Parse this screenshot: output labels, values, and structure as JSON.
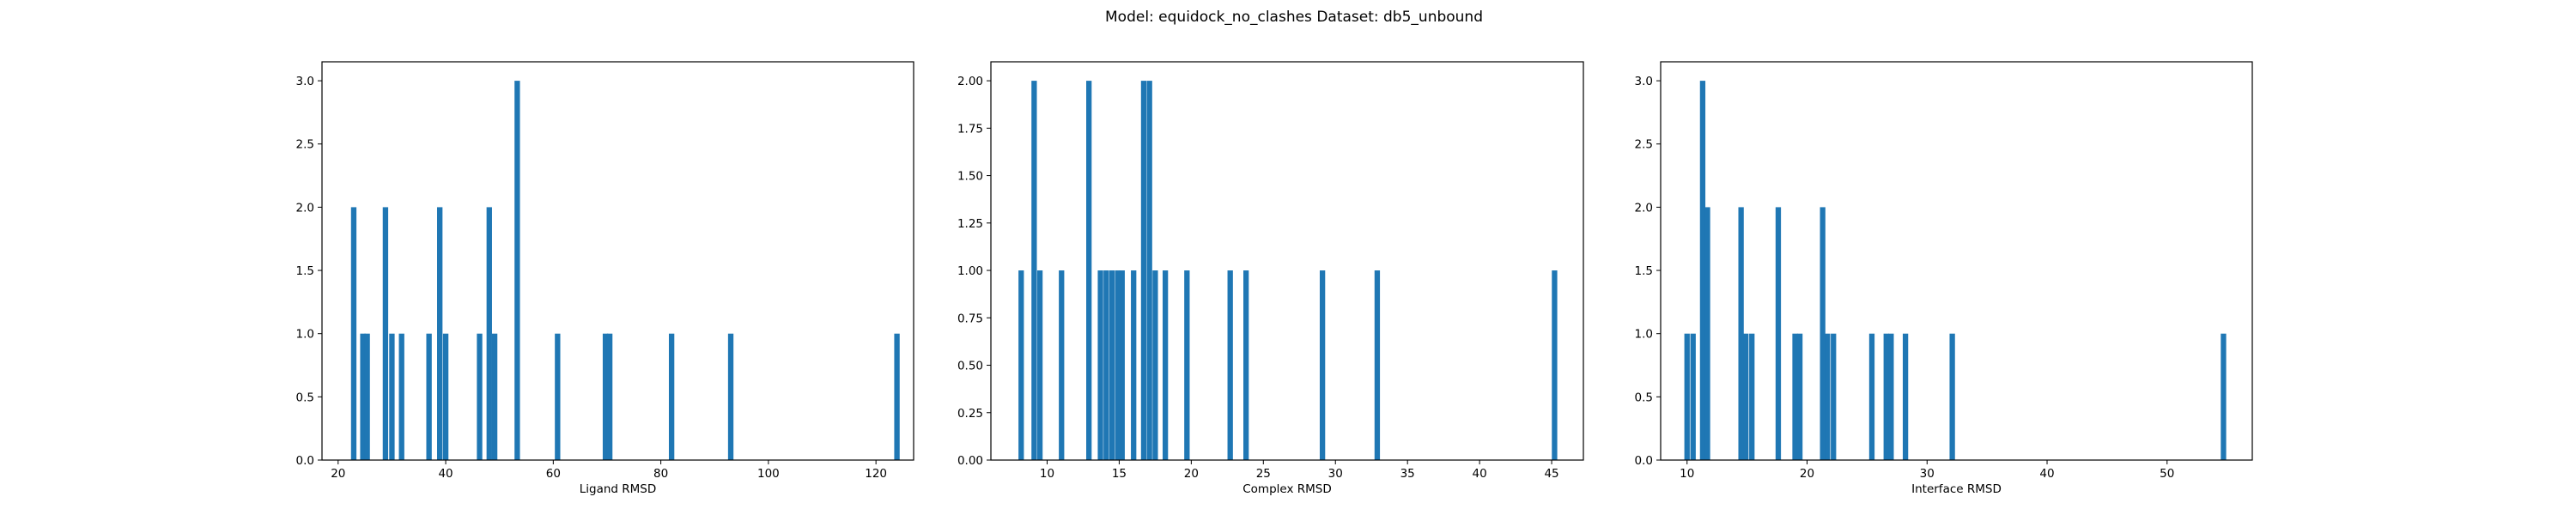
{
  "figure": {
    "title": "Model: equidock_no_clashes Dataset: db5_unbound"
  },
  "colors": {
    "bar": "#1f77b4",
    "axes": "#000000",
    "background": "#ffffff"
  },
  "chart_data": [
    {
      "type": "bar",
      "title": "",
      "xlabel": "Ligand RMSD",
      "ylabel": "",
      "xlim": [
        17,
        127
      ],
      "ylim": [
        0,
        3.15
      ],
      "xticks": [
        20,
        40,
        60,
        80,
        100,
        120
      ],
      "xtick_labels": [
        "20",
        "40",
        "60",
        "80",
        "100",
        "120"
      ],
      "yticks": [
        0,
        0.5,
        1,
        1.5,
        2,
        2.5,
        3
      ],
      "ytick_labels": [
        "0.0",
        "0.5",
        "1.0",
        "1.5",
        "2.0",
        "2.5",
        "3.0"
      ],
      "bin_width": 1.01,
      "bins": [
        {
          "x": 22.9,
          "count": 2
        },
        {
          "x": 24.6,
          "count": 1
        },
        {
          "x": 25.4,
          "count": 1
        },
        {
          "x": 28.8,
          "count": 2
        },
        {
          "x": 30.0,
          "count": 1
        },
        {
          "x": 31.8,
          "count": 1
        },
        {
          "x": 36.9,
          "count": 1
        },
        {
          "x": 38.9,
          "count": 2
        },
        {
          "x": 40.0,
          "count": 1
        },
        {
          "x": 46.3,
          "count": 1
        },
        {
          "x": 48.1,
          "count": 2
        },
        {
          "x": 49.1,
          "count": 1
        },
        {
          "x": 53.3,
          "count": 3
        },
        {
          "x": 60.8,
          "count": 1
        },
        {
          "x": 69.7,
          "count": 1
        },
        {
          "x": 70.5,
          "count": 1
        },
        {
          "x": 82.0,
          "count": 1
        },
        {
          "x": 93.0,
          "count": 1
        },
        {
          "x": 123.9,
          "count": 1
        }
      ]
    },
    {
      "type": "bar",
      "title": "",
      "xlabel": "Complex RMSD",
      "ylabel": "",
      "xlim": [
        6.1,
        47.2
      ],
      "ylim": [
        0,
        2.1
      ],
      "xticks": [
        10,
        15,
        20,
        25,
        30,
        35,
        40,
        45
      ],
      "xtick_labels": [
        "10",
        "15",
        "20",
        "25",
        "30",
        "35",
        "40",
        "45"
      ],
      "yticks": [
        0,
        0.25,
        0.5,
        0.75,
        1,
        1.25,
        1.5,
        1.75,
        2
      ],
      "ytick_labels": [
        "0.00",
        "0.25",
        "0.50",
        "0.75",
        "1.00",
        "1.25",
        "1.50",
        "1.75",
        "2.00"
      ],
      "bin_width": 0.375,
      "bins": [
        {
          "x": 8.2,
          "count": 1
        },
        {
          "x": 9.1,
          "count": 2
        },
        {
          "x": 9.5,
          "count": 1
        },
        {
          "x": 11.0,
          "count": 1
        },
        {
          "x": 12.9,
          "count": 2
        },
        {
          "x": 13.7,
          "count": 1
        },
        {
          "x": 14.1,
          "count": 1
        },
        {
          "x": 14.5,
          "count": 1
        },
        {
          "x": 14.9,
          "count": 1
        },
        {
          "x": 15.2,
          "count": 1
        },
        {
          "x": 16.0,
          "count": 1
        },
        {
          "x": 16.7,
          "count": 2
        },
        {
          "x": 17.1,
          "count": 2
        },
        {
          "x": 17.5,
          "count": 1
        },
        {
          "x": 18.2,
          "count": 1
        },
        {
          "x": 19.7,
          "count": 1
        },
        {
          "x": 22.7,
          "count": 1
        },
        {
          "x": 23.8,
          "count": 1
        },
        {
          "x": 29.1,
          "count": 1
        },
        {
          "x": 32.9,
          "count": 1
        },
        {
          "x": 45.2,
          "count": 1
        }
      ]
    },
    {
      "type": "bar",
      "title": "",
      "xlabel": "Interface RMSD",
      "ylabel": "",
      "xlim": [
        7.8,
        57.1
      ],
      "ylim": [
        0,
        3.15
      ],
      "xticks": [
        10,
        20,
        30,
        40,
        50
      ],
      "xtick_labels": [
        "10",
        "20",
        "30",
        "40",
        "50"
      ],
      "yticks": [
        0,
        0.5,
        1,
        1.5,
        2,
        2.5,
        3
      ],
      "ytick_labels": [
        "0.0",
        "0.5",
        "1.0",
        "1.5",
        "2.0",
        "2.5",
        "3.0"
      ],
      "bin_width": 0.45,
      "bins": [
        {
          "x": 10.0,
          "count": 1
        },
        {
          "x": 10.5,
          "count": 1
        },
        {
          "x": 11.3,
          "count": 3
        },
        {
          "x": 11.7,
          "count": 2
        },
        {
          "x": 14.5,
          "count": 2
        },
        {
          "x": 14.9,
          "count": 1
        },
        {
          "x": 15.4,
          "count": 1
        },
        {
          "x": 17.6,
          "count": 2
        },
        {
          "x": 19.0,
          "count": 1
        },
        {
          "x": 19.4,
          "count": 1
        },
        {
          "x": 21.3,
          "count": 2
        },
        {
          "x": 21.7,
          "count": 1
        },
        {
          "x": 22.2,
          "count": 1
        },
        {
          "x": 25.4,
          "count": 1
        },
        {
          "x": 26.6,
          "count": 1
        },
        {
          "x": 27.0,
          "count": 1
        },
        {
          "x": 28.2,
          "count": 1
        },
        {
          "x": 32.1,
          "count": 1
        },
        {
          "x": 54.7,
          "count": 1
        }
      ]
    }
  ]
}
